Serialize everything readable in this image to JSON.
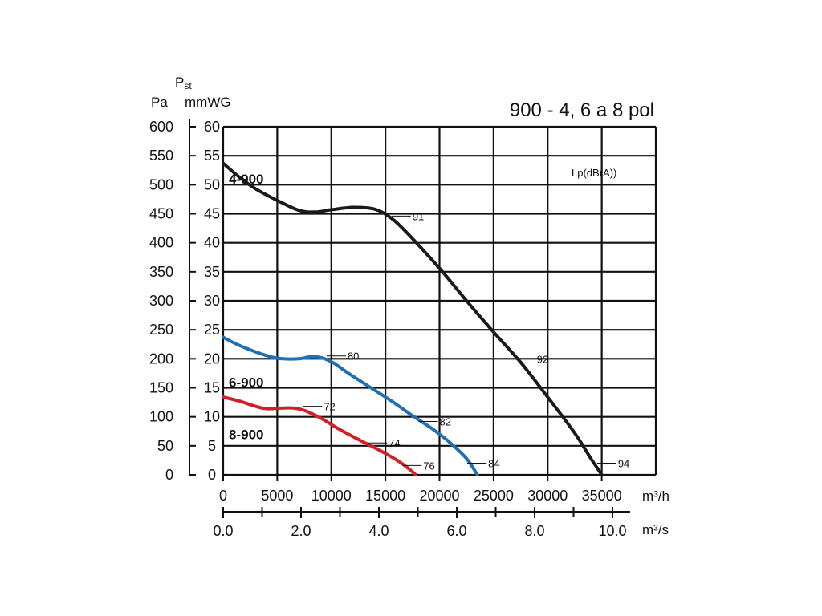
{
  "chart_data": {
    "type": "line",
    "title": "900 - 4, 6 a 8 pol",
    "ylabel_pst": "Pst",
    "yunit_pa": "Pa",
    "yunit_mmwg": "mmWG",
    "xunit_m3h": "m³/h",
    "xunit_m3s": "m³/s",
    "lp_label": "Lp(dB(A))",
    "grid": true,
    "xlim": [
      0,
      40000
    ],
    "ylim": [
      0,
      60
    ],
    "x_ticks": [
      0,
      5000,
      10000,
      15000,
      20000,
      25000,
      30000,
      35000
    ],
    "y_ticks_mmwg": [
      0,
      5,
      10,
      15,
      20,
      25,
      30,
      35,
      40,
      45,
      50,
      55,
      60
    ],
    "y_ticks_pa": [
      0,
      50,
      100,
      150,
      200,
      250,
      300,
      350,
      400,
      450,
      500,
      550,
      600
    ],
    "x2_ticks": [
      "0.0",
      "2.0",
      "4.0",
      "6.0",
      "8.0",
      "10.0"
    ],
    "x2_values_m3s": [
      0,
      2,
      4,
      6,
      8,
      10
    ],
    "series": [
      {
        "name": "4-900",
        "color": "#1a1a1a",
        "x": [
          0,
          1500,
          3000,
          5000,
          7000,
          8500,
          10000,
          12000,
          14000,
          15500,
          17000,
          20000,
          22500,
          25000,
          27500,
          30000,
          32500,
          34000,
          35000
        ],
        "y": [
          53.7,
          51.3,
          49.3,
          47.3,
          45.6,
          45.3,
          45.7,
          46.1,
          45.8,
          44.3,
          41.7,
          35.6,
          30.0,
          24.6,
          19.4,
          13.4,
          7.2,
          2.8,
          0
        ],
        "labels": [
          {
            "text": "91",
            "x": 17500,
            "y": 44.6
          },
          {
            "text": "92",
            "x": 29000,
            "y": 20.0
          },
          {
            "text": "94",
            "x": 36500,
            "y": 2.0
          }
        ]
      },
      {
        "name": "6-900",
        "color": "#1f6fb2",
        "x": [
          0,
          1500,
          3000,
          4500,
          5500,
          7000,
          8500,
          10000,
          11500,
          13500,
          15500,
          17500,
          19500,
          21000,
          22500,
          23500
        ],
        "y": [
          23.7,
          22.3,
          21.2,
          20.3,
          20.0,
          20.0,
          20.4,
          19.5,
          17.6,
          15.2,
          12.8,
          10.2,
          7.7,
          5.5,
          2.8,
          0
        ],
        "labels": [
          {
            "text": "80",
            "x": 11500,
            "y": 20.5
          },
          {
            "text": "82",
            "x": 20000,
            "y": 9.2
          },
          {
            "text": "84",
            "x": 24500,
            "y": 2.0
          }
        ]
      },
      {
        "name": "8-900",
        "color": "#d41f26",
        "x": [
          0,
          1500,
          3000,
          4000,
          5500,
          6500,
          7500,
          9000,
          10500,
          12500,
          14500,
          16000,
          17000,
          17800
        ],
        "y": [
          13.4,
          12.7,
          11.8,
          11.4,
          11.5,
          11.5,
          11.1,
          9.8,
          8.1,
          6.1,
          4.2,
          2.6,
          1.3,
          0
        ],
        "labels": [
          {
            "text": "72",
            "x": 9300,
            "y": 11.8
          },
          {
            "text": "74",
            "x": 15300,
            "y": 5.5
          },
          {
            "text": "76",
            "x": 18500,
            "y": 1.6
          }
        ]
      }
    ]
  }
}
